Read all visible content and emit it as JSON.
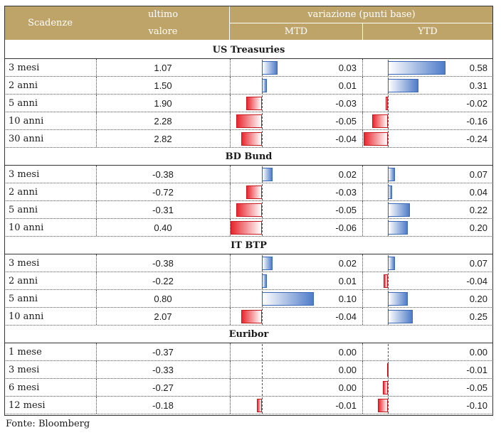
{
  "header": {
    "scadenze": "Scadenze",
    "ultimo_line1": "ultimo",
    "ultimo_line2": "valore",
    "variazione": "variazione (punti base)",
    "mtd": "MTD",
    "ytd": "YTD"
  },
  "sections": [
    {
      "title": "US Treasuries",
      "rows": [
        {
          "label": "3 mesi",
          "value": "1.07",
          "mtd": "0.03",
          "ytd": "0.58"
        },
        {
          "label": "2 anni",
          "value": "1.50",
          "mtd": "0.01",
          "ytd": "0.31"
        },
        {
          "label": "5 anni",
          "value": "1.90",
          "mtd": "-0.03",
          "ytd": "-0.02"
        },
        {
          "label": "10 anni",
          "value": "2.28",
          "mtd": "-0.05",
          "ytd": "-0.16"
        },
        {
          "label": "30 anni",
          "value": "2.82",
          "mtd": "-0.04",
          "ytd": "-0.24"
        }
      ]
    },
    {
      "title": "BD Bund",
      "rows": [
        {
          "label": "3 mesi",
          "value": "-0.38",
          "mtd": "0.02",
          "ytd": "0.07"
        },
        {
          "label": "2 anni",
          "value": "-0.72",
          "mtd": "-0.03",
          "ytd": "0.04"
        },
        {
          "label": "5 anni",
          "value": "-0.31",
          "mtd": "-0.05",
          "ytd": "0.22"
        },
        {
          "label": "10 anni",
          "value": "0.40",
          "mtd": "-0.06",
          "ytd": "0.20"
        }
      ]
    },
    {
      "title": "IT BTP",
      "rows": [
        {
          "label": "3 mesi",
          "value": "-0.38",
          "mtd": "0.02",
          "ytd": "0.07"
        },
        {
          "label": "2 anni",
          "value": "-0.22",
          "mtd": "0.01",
          "ytd": "-0.04"
        },
        {
          "label": "5 anni",
          "value": "0.80",
          "mtd": "0.10",
          "ytd": "0.20"
        },
        {
          "label": "10 anni",
          "value": "2.07",
          "mtd": "-0.04",
          "ytd": "0.25"
        }
      ]
    },
    {
      "title": "Euribor",
      "rows": [
        {
          "label": "1 mese",
          "value": "-0.37",
          "mtd": "0.00",
          "ytd": "0.00"
        },
        {
          "label": "3 mesi",
          "value": "-0.33",
          "mtd": "0.00",
          "ytd": "-0.01"
        },
        {
          "label": "6 mesi",
          "value": "-0.27",
          "mtd": "0.00",
          "ytd": "-0.05"
        },
        {
          "label": "12 mesi",
          "value": "-0.18",
          "mtd": "-0.01",
          "ytd": "-0.10"
        }
      ]
    }
  ],
  "colors": {
    "header": "#bfa46a",
    "positive_bar": "#4f7cc8",
    "negative_bar": "#e8262d"
  },
  "source": "Fonte: Bloomberg"
}
